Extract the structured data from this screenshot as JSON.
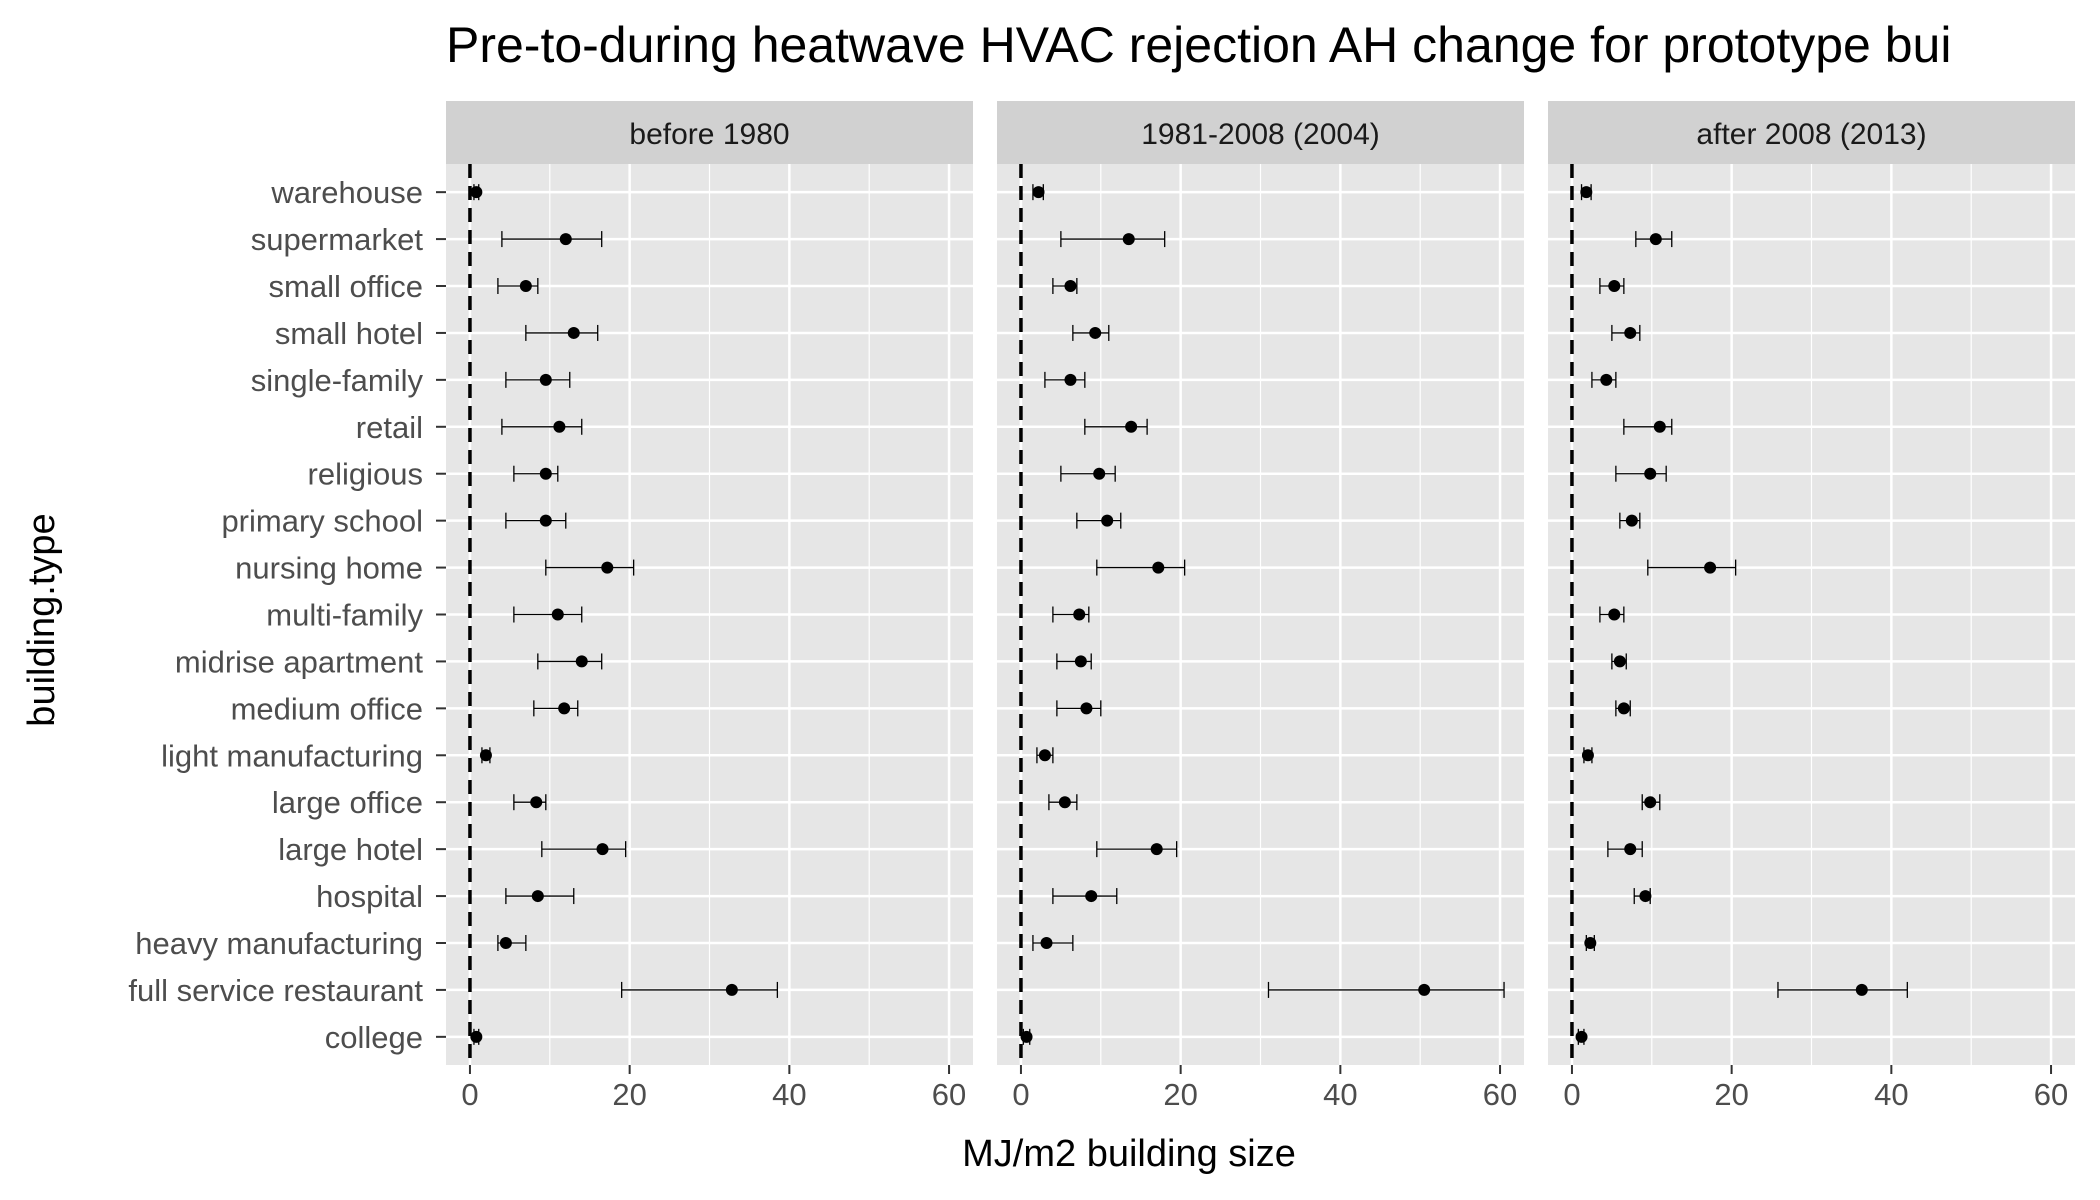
{
  "chart_data": {
    "type": "scatter",
    "title": "Pre-to-during heatwave HVAC rejection AH change for prototype bui",
    "xlabel": "MJ/m2 building size",
    "ylabel": "building.type",
    "xlim": [
      -3,
      63
    ],
    "xticks": [
      0,
      20,
      40,
      60
    ],
    "reference_line_x": 0,
    "grid": true,
    "categories": [
      "warehouse",
      "supermarket",
      "small office",
      "small hotel",
      "single-family",
      "retail",
      "religious",
      "primary school",
      "nursing home",
      "multi-family",
      "midrise apartment",
      "medium office",
      "light manufacturing",
      "large office",
      "large hotel",
      "hospital",
      "heavy manufacturing",
      "full service restaurant",
      "college"
    ],
    "panels": [
      {
        "label": "before 1980",
        "points": [
          {
            "mean": 0.8,
            "low": 0.5,
            "high": 1.1
          },
          {
            "mean": 12,
            "low": 4,
            "high": 16.5
          },
          {
            "mean": 7,
            "low": 3.5,
            "high": 8.5
          },
          {
            "mean": 13,
            "low": 7,
            "high": 16
          },
          {
            "mean": 9.5,
            "low": 4.5,
            "high": 12.5
          },
          {
            "mean": 11.2,
            "low": 4,
            "high": 14
          },
          {
            "mean": 9.5,
            "low": 5.5,
            "high": 11
          },
          {
            "mean": 9.5,
            "low": 4.5,
            "high": 12
          },
          {
            "mean": 17.2,
            "low": 9.5,
            "high": 20.5
          },
          {
            "mean": 11,
            "low": 5.5,
            "high": 14
          },
          {
            "mean": 14,
            "low": 8.5,
            "high": 16.5
          },
          {
            "mean": 11.8,
            "low": 8,
            "high": 13.5
          },
          {
            "mean": 2,
            "low": 1.5,
            "high": 2.5
          },
          {
            "mean": 8.3,
            "low": 5.5,
            "high": 9.5
          },
          {
            "mean": 16.6,
            "low": 9,
            "high": 19.5
          },
          {
            "mean": 8.5,
            "low": 4.5,
            "high": 13
          },
          {
            "mean": 4.5,
            "low": 3.5,
            "high": 7
          },
          {
            "mean": 32.8,
            "low": 19,
            "high": 38.5
          },
          {
            "mean": 0.8,
            "low": 0.5,
            "high": 1.1
          }
        ]
      },
      {
        "label": "1981-2008 (2004)",
        "points": [
          {
            "mean": 2.2,
            "low": 1.5,
            "high": 2.8
          },
          {
            "mean": 13.5,
            "low": 5,
            "high": 18
          },
          {
            "mean": 6.2,
            "low": 4,
            "high": 7
          },
          {
            "mean": 9.3,
            "low": 6.5,
            "high": 11
          },
          {
            "mean": 6.2,
            "low": 3,
            "high": 8
          },
          {
            "mean": 13.8,
            "low": 8,
            "high": 15.8
          },
          {
            "mean": 9.8,
            "low": 5,
            "high": 11.8
          },
          {
            "mean": 10.8,
            "low": 7,
            "high": 12.5
          },
          {
            "mean": 17.2,
            "low": 9.5,
            "high": 20.5
          },
          {
            "mean": 7.3,
            "low": 4,
            "high": 8.5
          },
          {
            "mean": 7.5,
            "low": 4.5,
            "high": 8.8
          },
          {
            "mean": 8.2,
            "low": 4.5,
            "high": 10
          },
          {
            "mean": 3,
            "low": 2,
            "high": 4
          },
          {
            "mean": 5.5,
            "low": 3.5,
            "high": 7
          },
          {
            "mean": 17,
            "low": 9.5,
            "high": 19.5
          },
          {
            "mean": 8.8,
            "low": 4,
            "high": 12
          },
          {
            "mean": 3.2,
            "low": 1.5,
            "high": 6.5
          },
          {
            "mean": 50.5,
            "low": 31,
            "high": 60.5
          },
          {
            "mean": 0.7,
            "low": 0.3,
            "high": 1.1
          }
        ]
      },
      {
        "label": "after 2008 (2013)",
        "points": [
          {
            "mean": 1.8,
            "low": 1.2,
            "high": 2.4
          },
          {
            "mean": 10.5,
            "low": 8,
            "high": 12.5
          },
          {
            "mean": 5.3,
            "low": 3.5,
            "high": 6.5
          },
          {
            "mean": 7.3,
            "low": 5,
            "high": 8.5
          },
          {
            "mean": 4.3,
            "low": 2.5,
            "high": 5.5
          },
          {
            "mean": 11,
            "low": 6.5,
            "high": 12.5
          },
          {
            "mean": 9.8,
            "low": 5.5,
            "high": 11.8
          },
          {
            "mean": 7.5,
            "low": 6,
            "high": 8.5
          },
          {
            "mean": 17.3,
            "low": 9.5,
            "high": 20.5
          },
          {
            "mean": 5.3,
            "low": 3.5,
            "high": 6.5
          },
          {
            "mean": 6,
            "low": 5,
            "high": 6.8
          },
          {
            "mean": 6.5,
            "low": 5.5,
            "high": 7.3
          },
          {
            "mean": 2,
            "low": 1.5,
            "high": 2.5
          },
          {
            "mean": 9.8,
            "low": 8.8,
            "high": 11
          },
          {
            "mean": 7.3,
            "low": 4.5,
            "high": 8.8
          },
          {
            "mean": 9.2,
            "low": 7.8,
            "high": 9.8
          },
          {
            "mean": 2.3,
            "low": 1.8,
            "high": 2.8
          },
          {
            "mean": 36.3,
            "low": 25.8,
            "high": 42
          },
          {
            "mean": 1.2,
            "low": 0.8,
            "high": 1.5
          }
        ]
      }
    ]
  },
  "colors": {
    "panel_bg": "#e6e6e6",
    "strip_bg": "#d1d1d1",
    "grid_major": "#ffffff",
    "point": "#000000",
    "reference_line": "#000000",
    "tick_text": "#4d4d4d"
  }
}
